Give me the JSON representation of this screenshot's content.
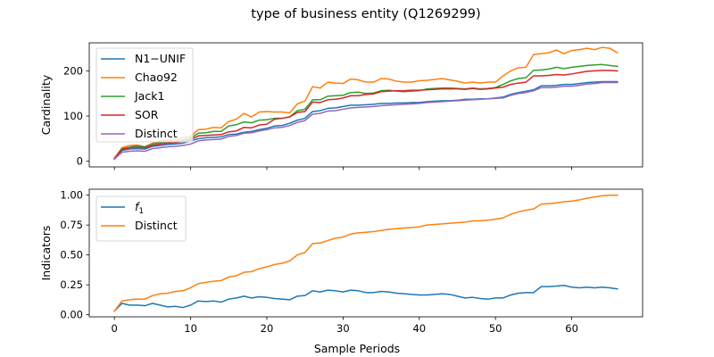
{
  "figure": {
    "title": "type of business entity (Q1269299)"
  },
  "chart_data": [
    {
      "type": "line",
      "ylabel": "Cardinality",
      "xlabel": "",
      "xlim": [
        -3.3,
        69.3
      ],
      "ylim": [
        -12.5,
        262
      ],
      "xticks": [
        0,
        10,
        20,
        30,
        40,
        50,
        60
      ],
      "yticks": [
        0,
        100,
        200
      ],
      "ytick_labels": [
        "0",
        "100",
        "200"
      ],
      "show_xtick_labels": false,
      "legend": "upper-left",
      "series": [
        {
          "name": "N1−UNIF",
          "color": "#1f77b4",
          "x": [
            0,
            1,
            2,
            3,
            4,
            5,
            6,
            7,
            8,
            9,
            10,
            11,
            12,
            13,
            14,
            15,
            16,
            17,
            18,
            19,
            20,
            21,
            22,
            23,
            24,
            25,
            26,
            27,
            28,
            29,
            30,
            31,
            32,
            33,
            34,
            35,
            36,
            37,
            38,
            39,
            40,
            41,
            42,
            43,
            44,
            45,
            46,
            47,
            48,
            49,
            50,
            51,
            52,
            53,
            54,
            55,
            56,
            57,
            58,
            59,
            60,
            61,
            62,
            63,
            64,
            65,
            66
          ],
          "values": [
            5,
            24,
            27,
            28,
            27,
            33,
            35,
            37,
            38,
            40,
            45,
            50,
            52,
            53,
            54,
            59,
            60,
            64,
            66,
            70,
            73,
            78,
            79,
            84,
            91,
            95,
            110,
            112,
            117,
            118,
            121,
            124,
            124,
            125,
            126,
            128,
            128,
            129,
            129,
            130,
            130,
            132,
            133,
            134,
            134,
            135,
            137,
            137,
            138,
            138,
            140,
            142,
            148,
            152,
            155,
            158,
            167,
            167,
            168,
            170,
            170,
            172,
            174,
            175,
            176,
            176,
            176
          ]
        },
        {
          "name": "Chao92",
          "color": "#ff7f0e",
          "x": [
            0,
            1,
            2,
            3,
            4,
            5,
            6,
            7,
            8,
            9,
            10,
            11,
            12,
            13,
            14,
            15,
            16,
            17,
            18,
            19,
            20,
            21,
            22,
            23,
            24,
            25,
            26,
            27,
            28,
            29,
            30,
            31,
            32,
            33,
            34,
            35,
            36,
            37,
            38,
            39,
            40,
            41,
            42,
            43,
            44,
            45,
            46,
            47,
            48,
            49,
            50,
            51,
            52,
            53,
            54,
            55,
            56,
            57,
            58,
            59,
            60,
            61,
            62,
            63,
            64,
            65,
            66
          ],
          "values": [
            7,
            30,
            35,
            36,
            32,
            40,
            45,
            46,
            48,
            52,
            55,
            70,
            71,
            75,
            74,
            88,
            93,
            106,
            98,
            109,
            110,
            109,
            109,
            107,
            127,
            133,
            165,
            162,
            175,
            173,
            172,
            182,
            180,
            175,
            175,
            183,
            182,
            177,
            175,
            175,
            178,
            179,
            181,
            183,
            180,
            177,
            173,
            175,
            173,
            175,
            175,
            189,
            200,
            207,
            208,
            236,
            238,
            240,
            246,
            238,
            245,
            247,
            250,
            247,
            252,
            250,
            240
          ]
        },
        {
          "name": "Jack1",
          "color": "#2ca02c",
          "x": [
            0,
            1,
            2,
            3,
            4,
            5,
            6,
            7,
            8,
            9,
            10,
            11,
            12,
            13,
            14,
            15,
            16,
            17,
            18,
            19,
            20,
            21,
            22,
            23,
            24,
            25,
            26,
            27,
            28,
            29,
            30,
            31,
            32,
            33,
            34,
            35,
            36,
            37,
            38,
            39,
            40,
            41,
            42,
            43,
            44,
            45,
            46,
            47,
            48,
            49,
            50,
            51,
            52,
            53,
            54,
            55,
            56,
            57,
            58,
            59,
            60,
            61,
            62,
            63,
            64,
            65,
            66
          ],
          "values": [
            5,
            28,
            31,
            34,
            32,
            38,
            41,
            43,
            44,
            47,
            51,
            62,
            63,
            66,
            66,
            78,
            81,
            87,
            85,
            91,
            92,
            95,
            95,
            98,
            112,
            115,
            136,
            136,
            144,
            145,
            146,
            152,
            153,
            150,
            151,
            156,
            157,
            155,
            154,
            155,
            156,
            160,
            161,
            162,
            162,
            161,
            160,
            162,
            160,
            161,
            163,
            170,
            178,
            183,
            185,
            201,
            202,
            204,
            208,
            205,
            208,
            210,
            212,
            213,
            214,
            212,
            210
          ]
        },
        {
          "name": "SOR",
          "color": "#d62728",
          "x": [
            0,
            1,
            2,
            3,
            4,
            5,
            6,
            7,
            8,
            9,
            10,
            11,
            12,
            13,
            14,
            15,
            16,
            17,
            18,
            19,
            20,
            21,
            22,
            23,
            24,
            25,
            26,
            27,
            28,
            29,
            30,
            31,
            32,
            33,
            34,
            35,
            36,
            37,
            38,
            39,
            40,
            41,
            42,
            43,
            44,
            45,
            46,
            47,
            48,
            49,
            50,
            51,
            52,
            53,
            54,
            55,
            56,
            57,
            58,
            59,
            60,
            61,
            62,
            63,
            64,
            65,
            66
          ],
          "values": [
            6,
            26,
            30,
            31,
            30,
            35,
            38,
            40,
            41,
            44,
            48,
            56,
            57,
            58,
            59,
            65,
            67,
            75,
            74,
            80,
            82,
            93,
            95,
            98,
            108,
            110,
            131,
            130,
            136,
            137,
            140,
            145,
            145,
            148,
            149,
            154,
            155,
            156,
            156,
            157,
            157,
            158,
            159,
            160,
            160,
            160,
            159,
            161,
            159,
            160,
            162,
            164,
            170,
            173,
            175,
            189,
            189,
            190,
            192,
            191,
            193,
            196,
            199,
            200,
            201,
            201,
            200
          ]
        },
        {
          "name": "Distinct",
          "color": "#9467bd",
          "x": [
            0,
            1,
            2,
            3,
            4,
            5,
            6,
            7,
            8,
            9,
            10,
            11,
            12,
            13,
            14,
            15,
            16,
            17,
            18,
            19,
            20,
            21,
            22,
            23,
            24,
            25,
            26,
            27,
            28,
            29,
            30,
            31,
            32,
            33,
            34,
            35,
            36,
            37,
            38,
            39,
            40,
            41,
            42,
            43,
            44,
            45,
            46,
            47,
            48,
            49,
            50,
            51,
            52,
            53,
            54,
            55,
            56,
            57,
            58,
            59,
            60,
            61,
            62,
            63,
            64,
            65,
            66
          ],
          "values": [
            5,
            20,
            22,
            23,
            22,
            28,
            30,
            32,
            33,
            35,
            38,
            45,
            47,
            48,
            49,
            55,
            57,
            62,
            63,
            67,
            70,
            74,
            75,
            79,
            86,
            90,
            104,
            106,
            111,
            112,
            115,
            118,
            119,
            120,
            121,
            123,
            124,
            125,
            126,
            127,
            128,
            130,
            131,
            132,
            133,
            134,
            135,
            136,
            137,
            138,
            139,
            140,
            146,
            150,
            152,
            156,
            163,
            163,
            164,
            166,
            166,
            168,
            171,
            172,
            174,
            174,
            174
          ]
        }
      ]
    },
    {
      "type": "line",
      "ylabel": "Indicators",
      "xlabel": "Sample Periods",
      "xlim": [
        -3.3,
        69.3
      ],
      "ylim": [
        -0.018,
        1.05
      ],
      "xticks": [
        0,
        10,
        20,
        30,
        40,
        50,
        60
      ],
      "xtick_labels": [
        "0",
        "10",
        "20",
        "30",
        "40",
        "50",
        "60"
      ],
      "yticks": [
        0.0,
        0.25,
        0.5,
        0.75,
        1.0
      ],
      "ytick_labels": [
        "0.00",
        "0.25",
        "0.50",
        "0.75",
        "1.00"
      ],
      "show_xtick_labels": true,
      "legend": "upper-left",
      "series": [
        {
          "name": "f",
          "name_subscript": "1",
          "color": "#1f77b4",
          "x": [
            0,
            1,
            2,
            3,
            4,
            5,
            6,
            7,
            8,
            9,
            10,
            11,
            12,
            13,
            14,
            15,
            16,
            17,
            18,
            19,
            20,
            21,
            22,
            23,
            24,
            25,
            26,
            27,
            28,
            29,
            30,
            31,
            32,
            33,
            34,
            35,
            36,
            37,
            38,
            39,
            40,
            41,
            42,
            43,
            44,
            45,
            46,
            47,
            48,
            49,
            50,
            51,
            52,
            53,
            54,
            55,
            56,
            57,
            58,
            59,
            60,
            61,
            62,
            63,
            64,
            65,
            66
          ],
          "values": [
            0.03,
            0.095,
            0.08,
            0.08,
            0.075,
            0.095,
            0.08,
            0.065,
            0.07,
            0.06,
            0.08,
            0.115,
            0.11,
            0.115,
            0.105,
            0.13,
            0.14,
            0.155,
            0.14,
            0.15,
            0.145,
            0.135,
            0.13,
            0.125,
            0.155,
            0.16,
            0.2,
            0.19,
            0.205,
            0.2,
            0.19,
            0.205,
            0.2,
            0.185,
            0.185,
            0.195,
            0.19,
            0.18,
            0.175,
            0.17,
            0.165,
            0.165,
            0.17,
            0.175,
            0.17,
            0.155,
            0.14,
            0.145,
            0.135,
            0.13,
            0.14,
            0.14,
            0.165,
            0.18,
            0.185,
            0.185,
            0.235,
            0.235,
            0.24,
            0.245,
            0.23,
            0.225,
            0.23,
            0.225,
            0.23,
            0.225,
            0.215
          ]
        },
        {
          "name": "Distinct",
          "name_subscript": "",
          "color": "#ff7f0e",
          "x": [
            0,
            1,
            2,
            3,
            4,
            5,
            6,
            7,
            8,
            9,
            10,
            11,
            12,
            13,
            14,
            15,
            16,
            17,
            18,
            19,
            20,
            21,
            22,
            23,
            24,
            25,
            26,
            27,
            28,
            29,
            30,
            31,
            32,
            33,
            34,
            35,
            36,
            37,
            38,
            39,
            40,
            41,
            42,
            43,
            44,
            45,
            46,
            47,
            48,
            49,
            50,
            51,
            52,
            53,
            54,
            55,
            56,
            57,
            58,
            59,
            60,
            61,
            62,
            63,
            64,
            65,
            66
          ],
          "values": [
            0.03,
            0.115,
            0.125,
            0.13,
            0.13,
            0.16,
            0.175,
            0.18,
            0.195,
            0.2,
            0.225,
            0.26,
            0.27,
            0.28,
            0.285,
            0.315,
            0.325,
            0.355,
            0.36,
            0.385,
            0.4,
            0.42,
            0.43,
            0.45,
            0.5,
            0.52,
            0.595,
            0.6,
            0.62,
            0.64,
            0.65,
            0.675,
            0.685,
            0.69,
            0.695,
            0.705,
            0.715,
            0.72,
            0.725,
            0.73,
            0.735,
            0.75,
            0.755,
            0.76,
            0.765,
            0.77,
            0.775,
            0.785,
            0.785,
            0.79,
            0.8,
            0.81,
            0.84,
            0.86,
            0.875,
            0.885,
            0.925,
            0.93,
            0.935,
            0.945,
            0.95,
            0.96,
            0.975,
            0.985,
            0.995,
            1.0,
            1.0
          ]
        }
      ]
    }
  ]
}
